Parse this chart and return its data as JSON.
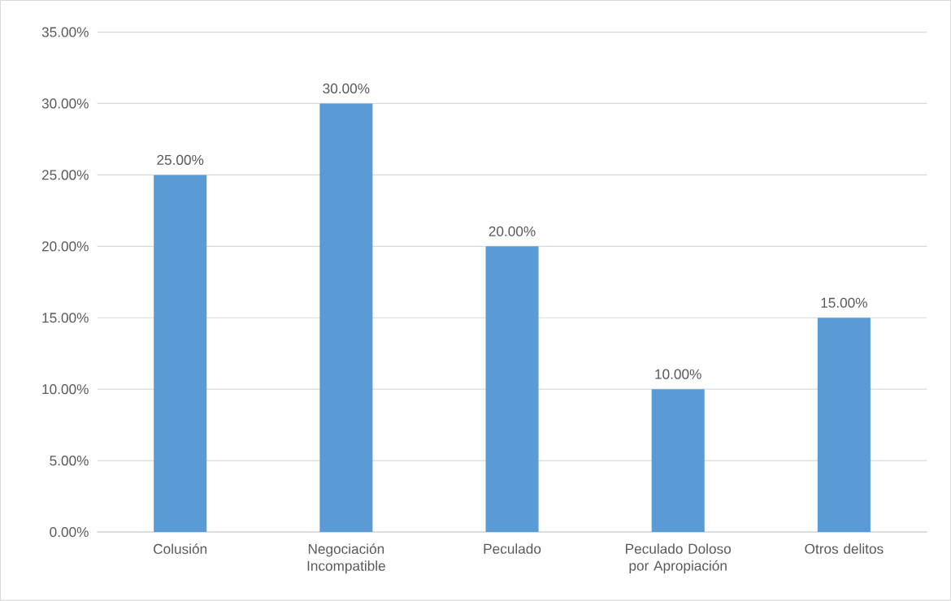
{
  "chart_data": {
    "type": "bar",
    "categories": [
      "Colusión",
      "Negociación Incompatible",
      "Peculado",
      "Peculado Doloso por Apropiación",
      "Otros delitos"
    ],
    "values": [
      25,
      30,
      20,
      10,
      15
    ],
    "value_labels": [
      "25.00%",
      "30.00%",
      "20.00%",
      "10.00%",
      "15.00%"
    ],
    "color": "#5b9bd5",
    "ylim": [
      0,
      35
    ],
    "yticks": [
      {
        "value": 0,
        "label": "0.00%"
      },
      {
        "value": 5,
        "label": "5.00%"
      },
      {
        "value": 10,
        "label": "10.00%"
      },
      {
        "value": 15,
        "label": "15.00%"
      },
      {
        "value": 20,
        "label": "20.00%"
      },
      {
        "value": 25,
        "label": "25.00%"
      },
      {
        "value": 30,
        "label": "30.00%"
      },
      {
        "value": 35,
        "label": "35.00%"
      }
    ],
    "grid": "y"
  }
}
